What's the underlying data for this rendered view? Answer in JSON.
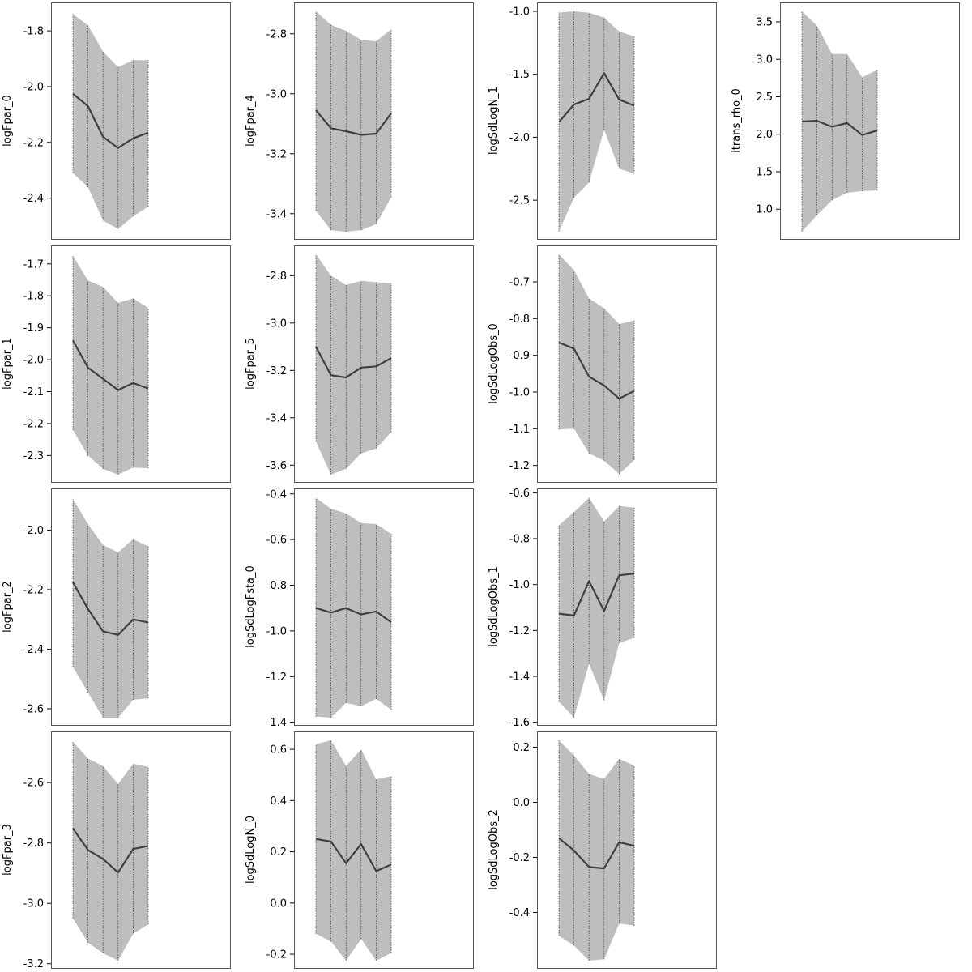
{
  "chart_data": [
    {
      "type": "area",
      "ylabel": "logFpar_0",
      "x": [
        1,
        2,
        3,
        4,
        5,
        6
      ],
      "ylim": [
        -2.52,
        -1.73
      ],
      "yticks": [
        "-2.4",
        "-2.2",
        "-2.0",
        "-1.8"
      ],
      "mean": [
        -2.025,
        -2.07,
        -2.18,
        -2.22,
        -2.185,
        -2.165
      ],
      "lower": [
        -2.31,
        -2.36,
        -2.48,
        -2.51,
        -2.465,
        -2.43
      ],
      "upper": [
        -1.74,
        -1.78,
        -1.875,
        -1.93,
        -1.905,
        -1.905
      ]
    },
    {
      "type": "area",
      "ylabel": "logFpar_1",
      "x": [
        1,
        2,
        3,
        4,
        5,
        6
      ],
      "ylim": [
        -2.36,
        -1.67
      ],
      "yticks": [
        "-2.3",
        "-2.2",
        "-2.1",
        "-2.0",
        "-1.9",
        "-1.8",
        "-1.7"
      ],
      "mean": [
        -1.94,
        -2.025,
        -2.06,
        -2.095,
        -2.073,
        -2.09
      ],
      "lower": [
        -2.22,
        -2.3,
        -2.342,
        -2.36,
        -2.338,
        -2.34
      ],
      "upper": [
        -1.675,
        -1.752,
        -1.772,
        -1.822,
        -1.808,
        -1.838
      ]
    },
    {
      "type": "area",
      "ylabel": "logFpar_2",
      "x": [
        1,
        2,
        3,
        4,
        5,
        6
      ],
      "ylim": [
        -2.63,
        -1.89
      ],
      "yticks": [
        "-2.6",
        "-2.4",
        "-2.2",
        "-2.0"
      ],
      "mean": [
        -2.175,
        -2.265,
        -2.34,
        -2.352,
        -2.3,
        -2.31
      ],
      "lower": [
        -2.46,
        -2.545,
        -2.63,
        -2.63,
        -2.57,
        -2.565
      ],
      "upper": [
        -1.895,
        -1.98,
        -2.05,
        -2.075,
        -2.03,
        -2.055
      ]
    },
    {
      "type": "area",
      "ylabel": "logFpar_3",
      "x": [
        1,
        2,
        3,
        4,
        5,
        6
      ],
      "ylim": [
        -3.19,
        -2.46
      ],
      "yticks": [
        "-3.2",
        "-3.0",
        "-2.8",
        "-2.6"
      ],
      "mean": [
        -2.752,
        -2.823,
        -2.853,
        -2.898,
        -2.82,
        -2.81
      ],
      "lower": [
        -3.05,
        -3.13,
        -3.165,
        -3.19,
        -3.1,
        -3.07
      ],
      "upper": [
        -2.465,
        -2.52,
        -2.545,
        -2.605,
        -2.537,
        -2.548
      ]
    },
    {
      "type": "area",
      "ylabel": "logFpar_4",
      "x": [
        1,
        2,
        3,
        4,
        5,
        6
      ],
      "ylim": [
        -3.46,
        -2.725
      ],
      "yticks": [
        "-3.4",
        "-3.2",
        "-3.0",
        "-2.8"
      ],
      "mean": [
        -3.055,
        -3.115,
        -3.125,
        -3.137,
        -3.133,
        -3.065
      ],
      "lower": [
        -3.39,
        -3.455,
        -3.46,
        -3.455,
        -3.435,
        -3.345
      ],
      "upper": [
        -2.725,
        -2.77,
        -2.79,
        -2.82,
        -2.825,
        -2.785
      ]
    },
    {
      "type": "area",
      "ylabel": "logFpar_5",
      "x": [
        1,
        2,
        3,
        4,
        5,
        6
      ],
      "ylim": [
        -3.64,
        -2.71
      ],
      "yticks": [
        "-3.6",
        "-3.4",
        "-3.2",
        "-3.0",
        "-2.8"
      ],
      "mean": [
        -3.1,
        -3.22,
        -3.23,
        -3.188,
        -3.183,
        -3.148
      ],
      "lower": [
        -3.5,
        -3.64,
        -3.615,
        -3.55,
        -3.53,
        -3.46
      ],
      "upper": [
        -2.71,
        -2.8,
        -2.84,
        -2.822,
        -2.828,
        -2.832
      ]
    },
    {
      "type": "area",
      "ylabel": "logSdLogFsta_0",
      "x": [
        1,
        2,
        3,
        4,
        5,
        6
      ],
      "ylim": [
        -1.38,
        -0.415
      ],
      "yticks": [
        "-1.4",
        "-1.2",
        "-1.0",
        "-0.8",
        "-0.6",
        "-0.4"
      ],
      "mean": [
        -0.9,
        -0.92,
        -0.9,
        -0.928,
        -0.915,
        -0.962
      ],
      "lower": [
        -1.375,
        -1.38,
        -1.315,
        -1.33,
        -1.298,
        -1.345
      ],
      "upper": [
        -0.418,
        -0.465,
        -0.485,
        -0.528,
        -0.532,
        -0.575
      ]
    },
    {
      "type": "area",
      "ylabel": "logSdLogN_0",
      "x": [
        1,
        2,
        3,
        4,
        5,
        6
      ],
      "ylim": [
        -0.225,
        0.635
      ],
      "yticks": [
        "-0.2",
        "0.0",
        "0.2",
        "0.4",
        "0.6"
      ],
      "mean": [
        0.25,
        0.24,
        0.155,
        0.23,
        0.125,
        0.15
      ],
      "lower": [
        -0.12,
        -0.15,
        -0.225,
        -0.14,
        -0.225,
        -0.195
      ],
      "upper": [
        0.62,
        0.635,
        0.535,
        0.6,
        0.483,
        0.495
      ]
    },
    {
      "type": "area",
      "ylabel": "logSdLogN_1",
      "x": [
        1,
        2,
        3,
        4,
        5,
        6
      ],
      "ylim": [
        -2.75,
        -1.0
      ],
      "yticks": [
        "-2.5",
        "-2.0",
        "-1.5",
        "-1.0"
      ],
      "mean": [
        -1.88,
        -1.74,
        -1.695,
        -1.49,
        -1.7,
        -1.75
      ],
      "lower": [
        -2.75,
        -2.48,
        -2.36,
        -1.94,
        -2.25,
        -2.29
      ],
      "upper": [
        -1.01,
        -1.0,
        -1.01,
        -1.05,
        -1.16,
        -1.2
      ]
    },
    {
      "type": "area",
      "ylabel": "logSdLogObs_0",
      "x": [
        1,
        2,
        3,
        4,
        5,
        6
      ],
      "ylim": [
        -1.225,
        -0.625
      ],
      "yticks": [
        "-1.2",
        "-1.1",
        "-1.0",
        "-0.9",
        "-0.8",
        "-0.7"
      ],
      "mean": [
        -0.865,
        -0.882,
        -0.958,
        -0.982,
        -1.018,
        -0.997
      ],
      "lower": [
        -1.102,
        -1.1,
        -1.167,
        -1.187,
        -1.223,
        -1.185
      ],
      "upper": [
        -0.625,
        -0.668,
        -0.745,
        -0.772,
        -0.815,
        -0.805
      ]
    },
    {
      "type": "area",
      "ylabel": "logSdLogObs_1",
      "x": [
        1,
        2,
        3,
        4,
        5,
        6
      ],
      "ylim": [
        -1.58,
        -0.62
      ],
      "yticks": [
        "-1.6",
        "-1.4",
        "-1.2",
        "-1.0",
        "-0.8",
        "-0.6"
      ],
      "mean": [
        -1.127,
        -1.135,
        -0.985,
        -1.115,
        -0.96,
        -0.952
      ],
      "lower": [
        -1.51,
        -1.58,
        -1.345,
        -1.505,
        -1.255,
        -1.232
      ],
      "upper": [
        -0.742,
        -0.685,
        -0.622,
        -0.725,
        -0.658,
        -0.665
      ]
    },
    {
      "type": "area",
      "ylabel": "logSdLogObs_2",
      "x": [
        1,
        2,
        3,
        4,
        5,
        6
      ],
      "ylim": [
        -0.575,
        0.225
      ],
      "yticks": [
        "-0.4",
        "-0.2",
        "0.0",
        "0.2"
      ],
      "mean": [
        -0.13,
        -0.175,
        -0.235,
        -0.24,
        -0.145,
        -0.158
      ],
      "lower": [
        -0.485,
        -0.52,
        -0.575,
        -0.57,
        -0.44,
        -0.448
      ],
      "upper": [
        0.225,
        0.17,
        0.103,
        0.085,
        0.158,
        0.133
      ]
    },
    {
      "type": "area",
      "ylabel": "itrans_rho_0",
      "x": [
        1,
        2,
        3,
        4,
        5,
        6
      ],
      "ylim": [
        0.7,
        3.64
      ],
      "yticks": [
        "1.0",
        "1.5",
        "2.0",
        "2.5",
        "3.0",
        "3.5"
      ],
      "mean": [
        2.17,
        2.18,
        2.1,
        2.15,
        1.99,
        2.05
      ],
      "lower": [
        0.7,
        0.92,
        1.12,
        1.22,
        1.24,
        1.25
      ],
      "upper": [
        3.64,
        3.45,
        3.07,
        3.07,
        2.76,
        2.86
      ]
    }
  ],
  "colors": {
    "band": "#bebebe",
    "line": "#404040",
    "grid": "#4d4d4d",
    "frame": "#555555"
  }
}
